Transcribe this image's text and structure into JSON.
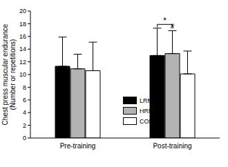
{
  "chart_data": {
    "type": "bar",
    "categories": [
      "Pre-training",
      "Post-training"
    ],
    "series": [
      {
        "name": "LRM",
        "color": "#000000",
        "values": [
          11.3,
          13.0
        ],
        "errors": [
          4.6,
          4.3
        ]
      },
      {
        "name": "HRM",
        "color": "#b3b3b3",
        "values": [
          10.9,
          13.3
        ],
        "errors": [
          2.3,
          3.6
        ]
      },
      {
        "name": "CON",
        "color": "#ffffff",
        "values": [
          10.6,
          10.1
        ],
        "errors": [
          4.5,
          3.6
        ]
      }
    ],
    "ylabel": [
      "Chest press muscular endurance",
      "(Number or repetitions)"
    ],
    "ylim": [
      0,
      20
    ],
    "yticks": [
      0,
      2,
      4,
      6,
      8,
      10,
      12,
      14,
      16,
      18,
      20
    ],
    "legend": "center",
    "annotations": [
      {
        "text": "*",
        "category": "Post-training",
        "series": [
          "LRM",
          "HRM"
        ],
        "y": 17.9
      },
      {
        "text": "#",
        "category": "Post-training",
        "series": [
          "HRM"
        ],
        "y": 17.2
      }
    ]
  }
}
